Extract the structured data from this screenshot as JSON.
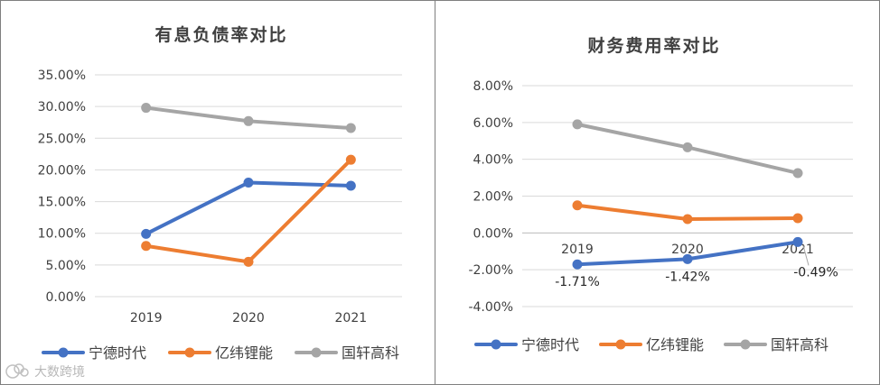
{
  "chart_data": [
    {
      "type": "line",
      "title": "有息负债率对比",
      "categories": [
        "2019",
        "2020",
        "2021"
      ],
      "ylim": [
        0,
        35
      ],
      "ytick_values": [
        0,
        5,
        10,
        15,
        20,
        25,
        30,
        35
      ],
      "ytick_labels": [
        "0.00%",
        "5.00%",
        "10.00%",
        "15.00%",
        "20.00%",
        "25.00%",
        "30.00%",
        "35.00%"
      ],
      "grid": true,
      "legend_position": "bottom",
      "series": [
        {
          "name": "宁德时代",
          "color": "#4472c4",
          "values": [
            9.9,
            18.0,
            17.5
          ]
        },
        {
          "name": "亿纬锂能",
          "color": "#ed7d31",
          "values": [
            8.0,
            5.5,
            21.6
          ]
        },
        {
          "name": "国轩高科",
          "color": "#a5a5a5",
          "values": [
            29.8,
            27.7,
            26.6
          ]
        }
      ]
    },
    {
      "type": "line",
      "title": "财务费用率对比",
      "categories": [
        "2019",
        "2020",
        "2021"
      ],
      "ylim": [
        -4,
        8
      ],
      "ytick_values": [
        -4,
        -2,
        0,
        2,
        4,
        6,
        8
      ],
      "ytick_labels": [
        "-4.00%",
        "-2.00%",
        "0.00%",
        "2.00%",
        "4.00%",
        "6.00%",
        "8.00%"
      ],
      "grid": true,
      "legend_position": "bottom",
      "series": [
        {
          "name": "宁德时代",
          "color": "#4472c4",
          "values": [
            -1.71,
            -1.42,
            -0.49
          ],
          "data_labels": [
            "-1.71%",
            "-1.42%",
            "-0.49%"
          ]
        },
        {
          "name": "亿纬锂能",
          "color": "#ed7d31",
          "values": [
            1.5,
            0.75,
            0.8
          ]
        },
        {
          "name": "国轩高科",
          "color": "#a5a5a5",
          "values": [
            5.9,
            4.65,
            3.25
          ]
        }
      ]
    }
  ],
  "watermark": {
    "text": "大数跨境"
  }
}
